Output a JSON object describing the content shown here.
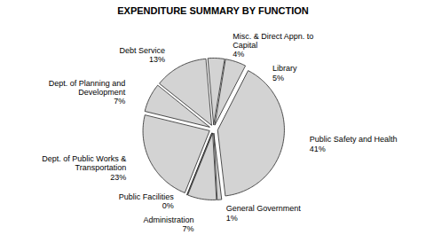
{
  "chart_data": {
    "type": "pie",
    "title": "EXPENDITURE SUMMARY BY FUNCTION",
    "categories": [
      "Misc. & Direct Appn. to Capital",
      "Library",
      "Public Safety and Health",
      "General Government",
      "Administration",
      "Public Facilities",
      "Dept. of Public Works & Transportation",
      "Dept. of Planning and Development",
      "Debt Service"
    ],
    "values": [
      4,
      5,
      41,
      1,
      7,
      0,
      23,
      7,
      13
    ],
    "value_labels": [
      "4%",
      "5%",
      "41%",
      "1%",
      "7%",
      "0%",
      "23%",
      "7%",
      "13%"
    ],
    "color": "#d3d3d3",
    "data_labels": true
  }
}
